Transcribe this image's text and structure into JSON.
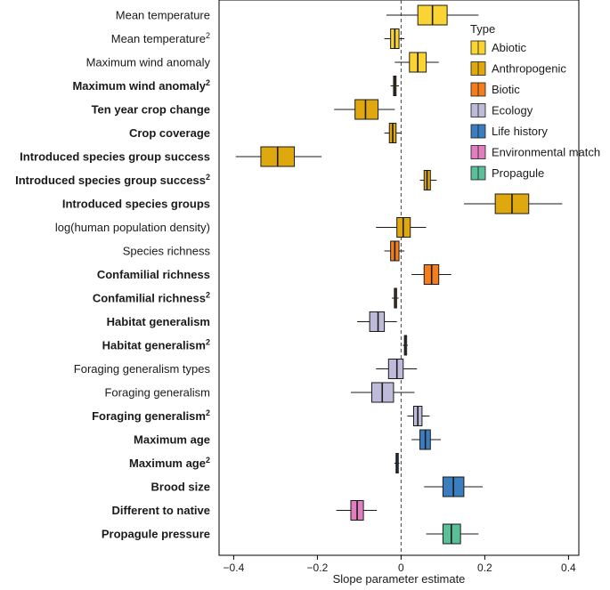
{
  "chart_data": {
    "type": "boxplot",
    "xlabel": "Slope parameter estimate",
    "ylabel": "",
    "xlim": [
      -0.43,
      0.42
    ],
    "xticks": [
      -0.4,
      -0.2,
      0,
      0.2,
      0.4
    ],
    "xtick_labels": [
      "−0.4",
      "−0.2",
      "0",
      "0.2",
      "0.4"
    ],
    "reference_line": 0,
    "legend": {
      "title": "Type",
      "position": "right",
      "items": [
        {
          "name": "Abiotic",
          "color": "#F9D433"
        },
        {
          "name": "Anthropogenic",
          "color": "#DFA80F"
        },
        {
          "name": "Biotic",
          "color": "#F57E1C"
        },
        {
          "name": "Ecology",
          "color": "#BEBADA"
        },
        {
          "name": "Life history",
          "color": "#3A7EBF"
        },
        {
          "name": "Environmental match",
          "color": "#E07EC0"
        },
        {
          "name": "Propagule",
          "color": "#5BBF99"
        }
      ]
    },
    "series": [
      {
        "label": "Mean temperature",
        "sup": "",
        "bold": false,
        "type": "Abiotic",
        "whisker_low": -0.035,
        "q1": 0.04,
        "median": 0.075,
        "q3": 0.11,
        "whisker_high": 0.185
      },
      {
        "label": "Mean temperature",
        "sup": "2",
        "bold": false,
        "type": "Abiotic",
        "whisker_low": -0.04,
        "q1": -0.025,
        "median": -0.015,
        "q3": -0.005,
        "whisker_high": 0.008
      },
      {
        "label": "Maximum wind anomaly",
        "sup": "",
        "bold": false,
        "type": "Abiotic",
        "whisker_low": -0.015,
        "q1": 0.02,
        "median": 0.04,
        "q3": 0.06,
        "whisker_high": 0.09
      },
      {
        "label": "Maximum wind anomaly",
        "sup": "2",
        "bold": true,
        "type": "Anthropogenic",
        "whisker_low": -0.025,
        "q1": -0.018,
        "median": -0.015,
        "q3": -0.012,
        "whisker_high": -0.005
      },
      {
        "label": "Ten year crop change",
        "sup": "",
        "bold": true,
        "type": "Anthropogenic",
        "whisker_low": -0.16,
        "q1": -0.11,
        "median": -0.085,
        "q3": -0.055,
        "whisker_high": -0.015
      },
      {
        "label": "Crop coverage",
        "sup": "",
        "bold": true,
        "type": "Anthropogenic",
        "whisker_low": -0.04,
        "q1": -0.028,
        "median": -0.02,
        "q3": -0.012,
        "whisker_high": 0.0
      },
      {
        "label": "Introduced species group success",
        "sup": "",
        "bold": true,
        "type": "Anthropogenic",
        "whisker_low": -0.395,
        "q1": -0.335,
        "median": -0.295,
        "q3": -0.255,
        "whisker_high": -0.19
      },
      {
        "label": "Introduced species group success",
        "sup": "2",
        "bold": true,
        "type": "Anthropogenic",
        "whisker_low": 0.045,
        "q1": 0.055,
        "median": 0.062,
        "q3": 0.07,
        "whisker_high": 0.085
      },
      {
        "label": "Introduced species groups",
        "sup": "",
        "bold": true,
        "type": "Anthropogenic",
        "whisker_low": 0.15,
        "q1": 0.225,
        "median": 0.265,
        "q3": 0.305,
        "whisker_high": 0.385
      },
      {
        "label": "log(human population density)",
        "sup": "",
        "bold": false,
        "type": "Anthropogenic",
        "whisker_low": -0.06,
        "q1": -0.01,
        "median": 0.005,
        "q3": 0.022,
        "whisker_high": 0.06
      },
      {
        "label": "Species richness",
        "sup": "",
        "bold": false,
        "type": "Biotic",
        "whisker_low": -0.04,
        "q1": -0.025,
        "median": -0.015,
        "q3": -0.005,
        "whisker_high": 0.008
      },
      {
        "label": "Confamilial richness",
        "sup": "",
        "bold": true,
        "type": "Biotic",
        "whisker_low": 0.025,
        "q1": 0.055,
        "median": 0.073,
        "q3": 0.09,
        "whisker_high": 0.12
      },
      {
        "label": "Confamilial richness",
        "sup": "2",
        "bold": true,
        "type": "Biotic",
        "whisker_low": -0.022,
        "q1": -0.016,
        "median": -0.014,
        "q3": -0.012,
        "whisker_high": -0.006
      },
      {
        "label": "Habitat generalism",
        "sup": "",
        "bold": true,
        "type": "Ecology",
        "whisker_low": -0.105,
        "q1": -0.075,
        "median": -0.055,
        "q3": -0.04,
        "whisker_high": -0.01
      },
      {
        "label": "Habitat generalism",
        "sup": "2",
        "bold": true,
        "type": "Ecology",
        "whisker_low": 0.004,
        "q1": 0.008,
        "median": 0.01,
        "q3": 0.012,
        "whisker_high": 0.016
      },
      {
        "label": "Foraging generalism types",
        "sup": "",
        "bold": false,
        "type": "Ecology",
        "whisker_low": -0.06,
        "q1": -0.03,
        "median": -0.01,
        "q3": 0.005,
        "whisker_high": 0.038
      },
      {
        "label": "Foraging generalism",
        "sup": "",
        "bold": false,
        "type": "Ecology",
        "whisker_low": -0.12,
        "q1": -0.07,
        "median": -0.045,
        "q3": -0.018,
        "whisker_high": 0.032
      },
      {
        "label": "Foraging generalism",
        "sup": "2",
        "bold": true,
        "type": "Ecology",
        "whisker_low": 0.015,
        "q1": 0.03,
        "median": 0.04,
        "q3": 0.05,
        "whisker_high": 0.068
      },
      {
        "label": "Maximum age",
        "sup": "",
        "bold": true,
        "type": "Life history",
        "whisker_low": 0.025,
        "q1": 0.045,
        "median": 0.058,
        "q3": 0.07,
        "whisker_high": 0.095
      },
      {
        "label": "Maximum age",
        "sup": "2",
        "bold": true,
        "type": "Life history",
        "whisker_low": -0.016,
        "q1": -0.012,
        "median": -0.01,
        "q3": -0.008,
        "whisker_high": -0.004
      },
      {
        "label": "Brood size",
        "sup": "",
        "bold": true,
        "type": "Life history",
        "whisker_low": 0.055,
        "q1": 0.1,
        "median": 0.125,
        "q3": 0.15,
        "whisker_high": 0.195
      },
      {
        "label": "Different to native",
        "sup": "",
        "bold": true,
        "type": "Environmental match",
        "whisker_low": -0.155,
        "q1": -0.12,
        "median": -0.105,
        "q3": -0.09,
        "whisker_high": -0.058
      },
      {
        "label": "Propagule pressure",
        "sup": "",
        "bold": true,
        "type": "Propagule",
        "whisker_low": 0.06,
        "q1": 0.1,
        "median": 0.12,
        "q3": 0.142,
        "whisker_high": 0.185
      }
    ]
  }
}
